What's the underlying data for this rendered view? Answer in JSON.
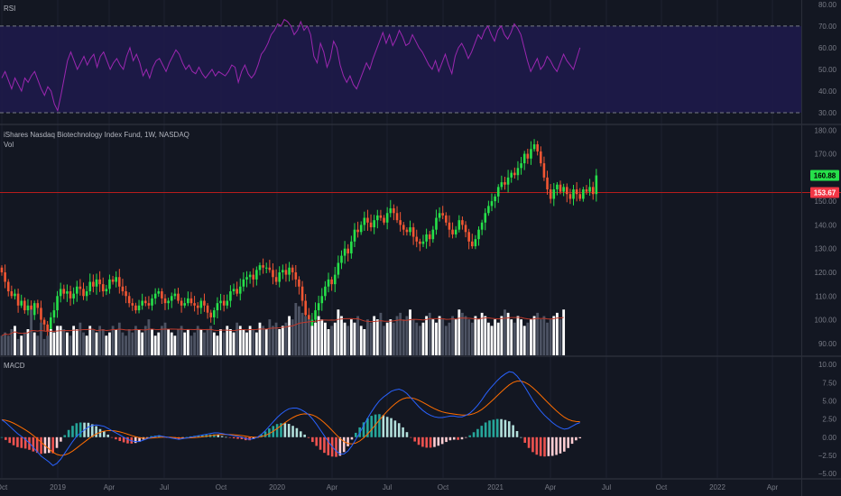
{
  "colors": {
    "background": "#131722",
    "rsi_band": "#1e1a4a",
    "rsi_line": "#9c27b0",
    "bull": "#26e04a",
    "bear": "#f15633",
    "vol_up": "#ffffff",
    "vol_down": "#4d5363",
    "vol_ma": "#c0392b",
    "macd_line": "#2962ff",
    "signal_line": "#ff6d00",
    "hist_pos_strong": "#26a69a",
    "hist_pos_weak": "#b2dfdb",
    "hist_neg_strong": "#ef5350",
    "hist_neg_weak": "#ffcdd2",
    "support_line": "#b71c1c",
    "price_tag": "#26e04a",
    "support_tag": "#f23645"
  },
  "panes": {
    "rsi": {
      "label": "RSI"
    },
    "price": {
      "title": "iShares Nasdaq Biotechnology Index Fund, 1W, NASDAQ",
      "sub": "Vol"
    },
    "macd": {
      "label": "MACD"
    }
  },
  "chart_data": [
    {
      "type": "line",
      "title": "RSI",
      "ylim": [
        25,
        82
      ],
      "yticks": [
        "80.00",
        "70.00",
        "60.00",
        "50.00",
        "40.00",
        "30.00"
      ],
      "band": [
        30,
        70
      ],
      "values": [
        46,
        49,
        45,
        41,
        46,
        43,
        40,
        46,
        44,
        47,
        49,
        45,
        41,
        38,
        42,
        40,
        34,
        31,
        38,
        46,
        54,
        58,
        54,
        50,
        53,
        56,
        52,
        55,
        57,
        51,
        56,
        58,
        54,
        50,
        53,
        55,
        52,
        50,
        56,
        60,
        54,
        57,
        53,
        47,
        50,
        46,
        51,
        54,
        55,
        52,
        49,
        53,
        56,
        59,
        57,
        53,
        50,
        52,
        49,
        48,
        51,
        48,
        46,
        48,
        50,
        47,
        49,
        48,
        47,
        49,
        52,
        51,
        44,
        49,
        52,
        48,
        46,
        48,
        52,
        57,
        59,
        62,
        66,
        68,
        71,
        70,
        73,
        72,
        70,
        66,
        68,
        72,
        68,
        70,
        66,
        56,
        53,
        62,
        58,
        51,
        55,
        63,
        60,
        52,
        47,
        44,
        47,
        43,
        41,
        45,
        49,
        53,
        50,
        55,
        59,
        63,
        67,
        62,
        66,
        61,
        64,
        68,
        65,
        61,
        62,
        66,
        63,
        60,
        58,
        55,
        52,
        50,
        54,
        49,
        53,
        57,
        52,
        48,
        56,
        60,
        62,
        59,
        55,
        58,
        62,
        66,
        64,
        68,
        70,
        66,
        63,
        68,
        70,
        66,
        64,
        67,
        71,
        69,
        66,
        60,
        54,
        49,
        52,
        55,
        50,
        52,
        56,
        54,
        51,
        49,
        53,
        57,
        54,
        52,
        50,
        55,
        60
      ]
    },
    {
      "type": "candlestick",
      "title": "iShares Nasdaq Biotechnology Index Fund, 1W, NASDAQ",
      "x_ticks": [
        "Oct",
        "2019",
        "Apr",
        "Jul",
        "Oct",
        "2020",
        "Apr",
        "Jul",
        "Oct",
        "2021",
        "Apr",
        "Jul",
        "Oct",
        "2022",
        "Apr"
      ],
      "ylim": [
        85,
        182
      ],
      "yticks": [
        "180.00",
        "170.00",
        "160.00",
        "150.00",
        "140.00",
        "130.00",
        "120.00",
        "110.00",
        "100.00",
        "90.00"
      ],
      "last_price": "160.88",
      "support_level": 153.67,
      "support_label": "153.67",
      "ohlc_shape": {
        "closes": [
          120,
          116,
          112,
          110,
          111,
          106,
          108,
          104,
          106,
          102,
          107,
          105,
          100,
          98,
          95,
          101,
          104,
          110,
          113,
          111,
          112,
          109,
          111,
          114,
          113,
          110,
          112,
          116,
          114,
          117,
          115,
          112,
          113,
          117,
          116,
          118,
          114,
          112,
          110,
          107,
          106,
          104,
          106,
          108,
          107,
          106,
          109,
          111,
          112,
          109,
          107,
          108,
          110,
          111,
          108,
          106,
          107,
          109,
          107,
          106,
          105,
          108,
          106,
          103,
          101,
          104,
          107,
          108,
          106,
          108,
          112,
          113,
          111,
          114,
          117,
          118,
          119,
          117,
          121,
          123,
          122,
          122,
          121,
          118,
          116,
          120,
          121,
          119,
          122,
          120,
          117,
          114,
          108,
          102,
          96,
          100,
          104,
          107,
          110,
          114,
          117,
          115,
          119,
          124,
          127,
          130,
          128,
          133,
          138,
          137,
          140,
          143,
          141,
          139,
          142,
          144,
          143,
          141,
          145,
          147,
          145,
          142,
          140,
          138,
          137,
          139,
          135,
          133,
          132,
          133,
          136,
          134,
          138,
          143,
          145,
          144,
          141,
          138,
          136,
          138,
          142,
          140,
          137,
          133,
          131,
          134,
          138,
          141,
          145,
          148,
          150,
          152,
          156,
          158,
          157,
          160,
          162,
          161,
          164,
          166,
          170,
          168,
          172,
          174,
          171,
          166,
          160,
          155,
          151,
          155,
          157,
          154,
          156,
          153,
          151,
          155,
          153,
          151,
          155,
          154,
          156,
          153,
          160.88
        ]
      }
    },
    {
      "type": "bar",
      "title": "Vol",
      "note": "volume histogram with moving average (relative units)",
      "values": [
        6,
        7,
        6,
        8,
        9,
        5,
        6,
        7,
        8,
        14,
        7,
        6,
        10,
        5,
        6,
        8,
        7,
        9,
        9,
        8,
        7,
        6,
        9,
        8,
        10,
        7,
        6,
        9,
        8,
        7,
        9,
        8,
        6,
        7,
        9,
        8,
        10,
        7,
        6,
        8,
        7,
        9,
        8,
        7,
        9,
        11,
        8,
        6,
        7,
        9,
        10,
        8,
        7,
        6,
        8,
        9,
        7,
        8,
        6,
        7,
        9,
        8,
        7,
        8,
        9,
        7,
        6,
        8,
        7,
        9,
        8,
        7,
        10,
        9,
        8,
        7,
        9,
        8,
        7,
        10,
        9,
        8,
        11,
        9,
        10,
        8,
        9,
        10,
        12,
        11,
        16,
        15,
        13,
        12,
        11,
        9,
        10,
        12,
        11,
        10,
        8,
        9,
        10,
        14,
        12,
        10,
        9,
        11,
        10,
        12,
        9,
        8,
        11,
        10,
        12,
        11,
        13,
        9,
        10,
        11,
        10,
        12,
        13,
        11,
        12,
        14,
        11,
        10,
        9,
        10,
        12,
        13,
        11,
        10,
        12,
        11,
        9,
        10,
        12,
        11,
        14,
        13,
        12,
        11,
        10,
        12,
        11,
        13,
        12,
        10,
        9,
        11,
        10,
        12,
        14,
        13,
        11,
        10,
        12,
        11,
        9,
        10,
        11,
        12,
        13,
        11,
        12,
        10,
        11,
        12,
        13,
        11,
        14
      ]
    },
    {
      "type": "line",
      "title": "MACD",
      "ylim": [
        -5.6,
        11
      ],
      "yticks": [
        "10.00",
        "7.50",
        "5.00",
        "2.50",
        "0.00",
        "−2.50",
        "−5.00"
      ],
      "macd": [
        2.4,
        2.0,
        1.5,
        1.0,
        0.5,
        0.1,
        -0.3,
        -0.8,
        -1.4,
        -2.0,
        -2.6,
        -3.0,
        -3.4,
        -3.9,
        -3.6,
        -3.0,
        -2.2,
        -1.4,
        -0.6,
        0.1,
        0.6,
        1.0,
        1.4,
        1.6,
        1.7,
        1.6,
        1.5,
        1.2,
        0.9,
        0.6,
        0.3,
        0.0,
        -0.3,
        -0.5,
        -0.6,
        -0.6,
        -0.4,
        -0.2,
        0.0,
        0.1,
        0.2,
        0.1,
        0.0,
        -0.1,
        -0.2,
        -0.3,
        -0.2,
        -0.1,
        0.0,
        0.1,
        0.2,
        0.3,
        0.4,
        0.5,
        0.6,
        0.6,
        0.5,
        0.4,
        0.3,
        0.2,
        0.1,
        0.0,
        -0.2,
        -0.3,
        -0.2,
        0.0,
        0.4,
        0.9,
        1.5,
        2.1,
        2.7,
        3.2,
        3.6,
        3.9,
        4.0,
        4.0,
        3.8,
        3.5,
        3.1,
        2.5,
        1.8,
        1.0,
        0.2,
        -0.6,
        -1.3,
        -1.9,
        -2.3,
        -2.3,
        -1.9,
        -1.2,
        -0.3,
        0.6,
        1.6,
        2.6,
        3.5,
        4.3,
        5.0,
        5.5,
        5.9,
        6.3,
        6.5,
        6.6,
        6.4,
        6.0,
        5.4,
        4.8,
        4.2,
        3.7,
        3.3,
        3.0,
        2.8,
        2.7,
        2.7,
        2.8,
        2.9,
        2.9,
        2.8,
        2.8,
        3.0,
        3.3,
        3.8,
        4.4,
        5.1,
        5.9,
        6.6,
        7.2,
        7.8,
        8.3,
        8.7,
        9.0,
        8.9,
        8.4,
        7.7,
        6.9,
        6.0,
        5.1,
        4.3,
        3.6,
        3.0,
        2.5,
        2.0,
        1.6,
        1.3,
        1.1,
        1.2,
        1.5,
        1.8,
        2.0
      ]
    }
  ]
}
